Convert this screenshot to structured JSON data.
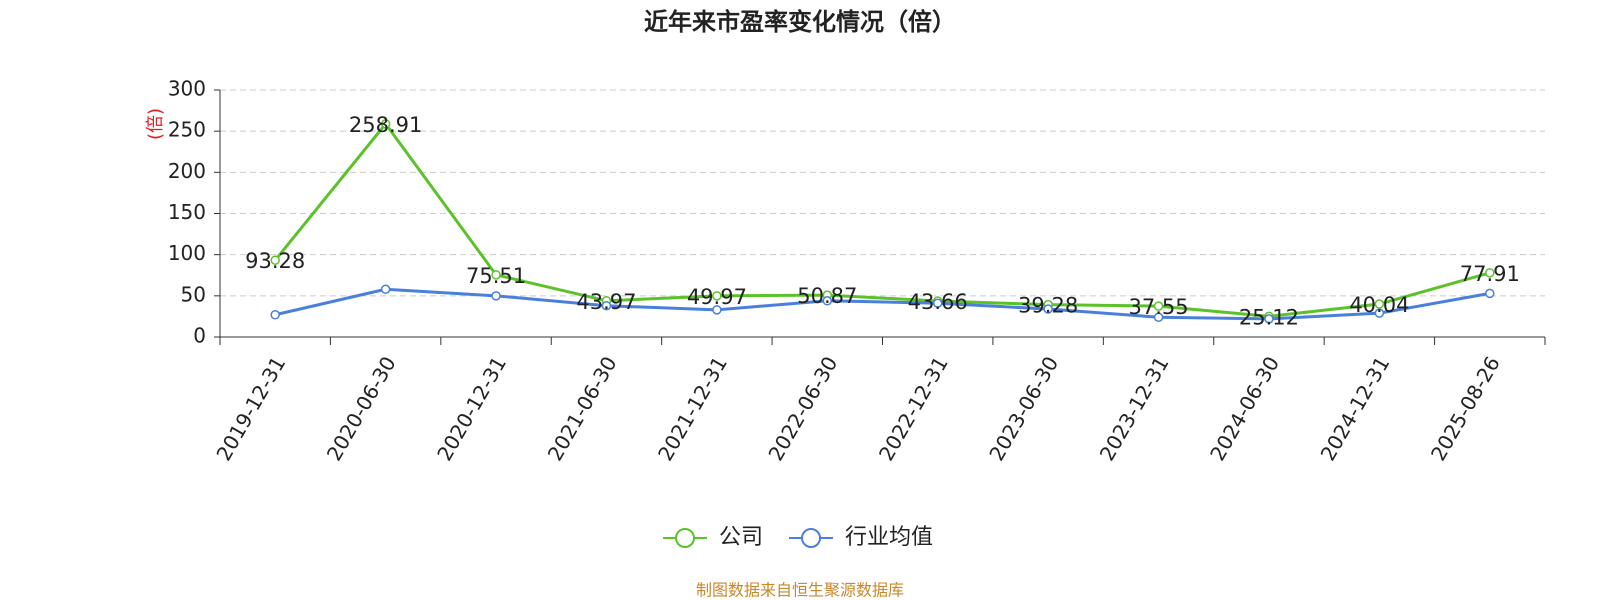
{
  "chart_data": {
    "type": "line",
    "title": "近年来市盈率变化情况（倍）",
    "y_label": "(倍)",
    "source": "制图数据来自恒生聚源数据库",
    "categories": [
      "2019-12-31",
      "2020-06-30",
      "2020-12-31",
      "2021-06-30",
      "2021-12-31",
      "2022-06-30",
      "2022-12-31",
      "2023-06-30",
      "2023-12-31",
      "2024-06-30",
      "2024-12-31",
      "2025-08-26"
    ],
    "series": [
      {
        "name": "公司",
        "color": "#5cc22a",
        "values": [
          93.28,
          258.91,
          75.51,
          43.97,
          49.97,
          50.87,
          43.66,
          39.28,
          37.55,
          25.12,
          40.04,
          77.91
        ]
      },
      {
        "name": "行业均值",
        "color": "#4a7fdb",
        "values": [
          27,
          58,
          50,
          38,
          33,
          44,
          41,
          34,
          24,
          22,
          29,
          53
        ]
      }
    ],
    "ylim": [
      0,
      300
    ],
    "yticks": [
      0,
      50,
      100,
      150,
      200,
      250,
      300
    ],
    "grid": true
  }
}
